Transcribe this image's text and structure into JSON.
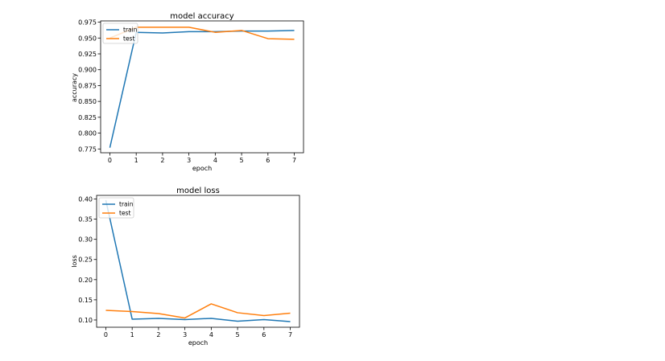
{
  "chart_data": [
    {
      "type": "line",
      "title": "model accuracy",
      "xlabel": "epoch",
      "ylabel": "accuracy",
      "x": [
        0,
        1,
        2,
        3,
        4,
        5,
        6,
        7
      ],
      "xticks": [
        "0",
        "1",
        "2",
        "3",
        "4",
        "5",
        "6",
        "7"
      ],
      "yticks": [
        "0.775",
        "0.800",
        "0.825",
        "0.850",
        "0.875",
        "0.900",
        "0.925",
        "0.950",
        "0.975"
      ],
      "ylim": [
        0.769,
        0.977
      ],
      "xlim": [
        -0.35,
        7.35
      ],
      "grid": false,
      "legend_position": "upper left",
      "series": [
        {
          "name": "train",
          "color": "#1f77b4",
          "values": [
            0.777,
            0.959,
            0.958,
            0.96,
            0.96,
            0.961,
            0.961,
            0.962
          ]
        },
        {
          "name": "test",
          "color": "#ff7f0e",
          "values": [
            0.95,
            0.967,
            0.967,
            0.967,
            0.959,
            0.962,
            0.949,
            0.948
          ]
        }
      ]
    },
    {
      "type": "line",
      "title": "model loss",
      "xlabel": "epoch",
      "ylabel": "loss",
      "x": [
        0,
        1,
        2,
        3,
        4,
        5,
        6,
        7
      ],
      "xticks": [
        "0",
        "1",
        "2",
        "3",
        "4",
        "5",
        "6",
        "7"
      ],
      "yticks": [
        "0.10",
        "0.15",
        "0.20",
        "0.25",
        "0.30",
        "0.35",
        "0.40"
      ],
      "ylim": [
        0.082,
        0.409
      ],
      "xlim": [
        -0.35,
        7.35
      ],
      "grid": false,
      "legend_position": "upper left",
      "series": [
        {
          "name": "train",
          "color": "#1f77b4",
          "values": [
            0.397,
            0.102,
            0.104,
            0.101,
            0.104,
            0.097,
            0.101,
            0.096
          ]
        },
        {
          "name": "test",
          "color": "#ff7f0e",
          "values": [
            0.124,
            0.121,
            0.116,
            0.105,
            0.14,
            0.118,
            0.111,
            0.117
          ]
        }
      ]
    }
  ]
}
